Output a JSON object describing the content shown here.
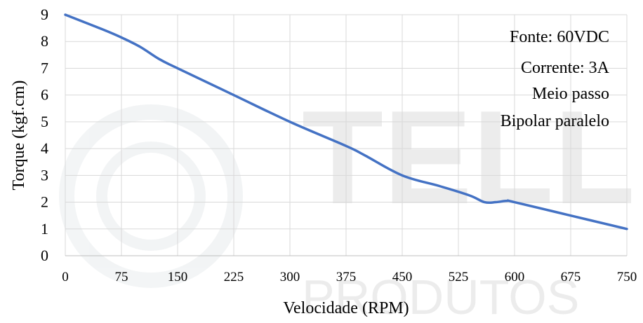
{
  "chart_data": {
    "type": "line",
    "title": "",
    "xlabel": "Velocidade (RPM)",
    "ylabel": "Torque (kgf.cm)",
    "xlim": [
      0,
      750
    ],
    "ylim": [
      0,
      9
    ],
    "xticks": [
      0,
      75,
      150,
      225,
      300,
      375,
      450,
      525,
      600,
      675,
      750
    ],
    "yticks": [
      0,
      1,
      2,
      3,
      4,
      5,
      6,
      7,
      8,
      9
    ],
    "grid": true,
    "series": [
      {
        "color": "#4472C4",
        "x": [
          0,
          50,
          75,
          100,
          125,
          150,
          225,
          300,
          375,
          400,
          450,
          500,
          540,
          560,
          575,
          590,
          600,
          675,
          750
        ],
        "y": [
          9,
          8.45,
          8.15,
          7.8,
          7.35,
          7.0,
          6.0,
          5.0,
          4.1,
          3.75,
          3.0,
          2.6,
          2.25,
          2.0,
          2.0,
          2.05,
          2.0,
          1.5,
          1.0
        ]
      }
    ],
    "annotations": [
      "Fonte: 60VDC",
      "Corrente: 3A",
      "Meio passo",
      "Bipolar paralelo"
    ]
  },
  "watermark": {
    "brand": "TELL",
    "sub": "PRODUTOS"
  }
}
